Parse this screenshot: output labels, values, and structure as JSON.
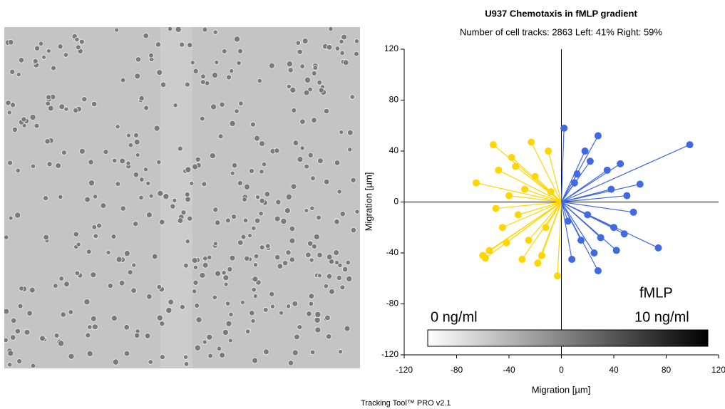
{
  "chart_data": {
    "type": "scatter",
    "title": "U937 Chemotaxis in fMLP gradient",
    "subtitle": "Number of cell tracks: 2863  Left: 41% Right: 59%",
    "xlabel": "Migration [µm]",
    "ylabel": "Migration [µm]",
    "xlim": [
      -120,
      120
    ],
    "ylim": [
      -120,
      120
    ],
    "xticks": [
      -120,
      -80,
      -40,
      0,
      40,
      80,
      120
    ],
    "yticks": [
      -120,
      -80,
      -40,
      0,
      40,
      80,
      120
    ],
    "annotations": {
      "gradient": "fMLP",
      "low": "0 ng/ml",
      "high": "10 ng/ml",
      "footer": "Tracking Tool™ PRO v2.1"
    },
    "series": [
      {
        "color": "#ffd700",
        "x": [
          -52,
          -58,
          -60,
          -23,
          -3,
          -65,
          -35,
          -55,
          -45,
          -25,
          -40,
          -15,
          -50,
          -20,
          -10,
          -30,
          -38,
          -28,
          -48,
          -12,
          -33,
          -18,
          -42,
          -8
        ],
        "values": [
          45,
          -44,
          -42,
          47,
          -58,
          15,
          28,
          -38,
          -20,
          -30,
          5,
          -42,
          -5,
          20,
          40,
          -45,
          35,
          10,
          25,
          -20,
          -10,
          -48,
          -32,
          8
        ]
      },
      {
        "color": "#4169e1",
        "x": [
          2,
          98,
          74,
          28,
          28,
          18,
          60,
          50,
          40,
          25,
          15,
          55,
          35,
          10,
          45,
          20,
          30,
          8,
          38,
          48,
          22,
          12,
          42,
          5
        ],
        "values": [
          58,
          45,
          -36,
          -54,
          52,
          40,
          14,
          5,
          -20,
          -40,
          -30,
          -8,
          25,
          15,
          30,
          -10,
          -28,
          -45,
          10,
          -25,
          32,
          22,
          -38,
          -15
        ]
      }
    ]
  }
}
